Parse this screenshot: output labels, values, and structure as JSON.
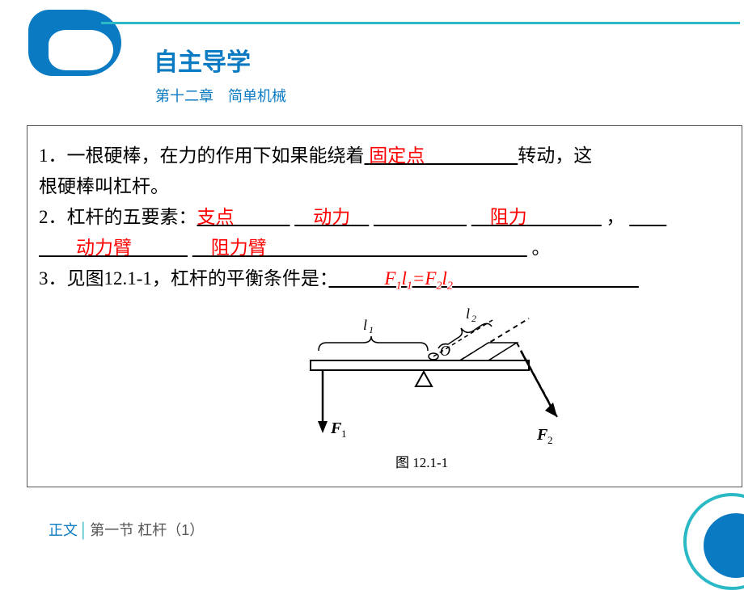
{
  "header": {
    "title": "自主导学",
    "subtitle": "第十二章　简单机械"
  },
  "content": {
    "q1_pre": "1．一根硬棒，在力的作用下如果能绕着",
    "q1_ans": "固定点",
    "q1_post1": "转动，这",
    "q1_line2": "根硬棒叫杠杆。",
    "q2_pre": "2．杠杆的五要素：",
    "q2_a1": "支点",
    "q2_a2": "动力",
    "q2_a3": "阻力",
    "q2_comma": "，",
    "q2_a4": "动力臂",
    "q2_a5": "阻力臂",
    "q2_end": "。",
    "q3_pre": "3．见图12.1-1，杠杆的平衡条件是：",
    "q3_formula_html": "F<sub>1</sub>l<sub>1</sub>=F<sub>2</sub>l<sub>2</sub>"
  },
  "diagram": {
    "l1": "l₁",
    "l2": "l₂",
    "O": "O",
    "F1": "F₁",
    "F2": "F₂",
    "caption": "图 12.1-1",
    "stroke": "#000000"
  },
  "footer": {
    "label": "正文",
    "text": "第一节  杠杆（1）"
  },
  "colors": {
    "primary": "#0a7ac2",
    "accent": "#2bb9c5",
    "answer": "#ff0000"
  }
}
